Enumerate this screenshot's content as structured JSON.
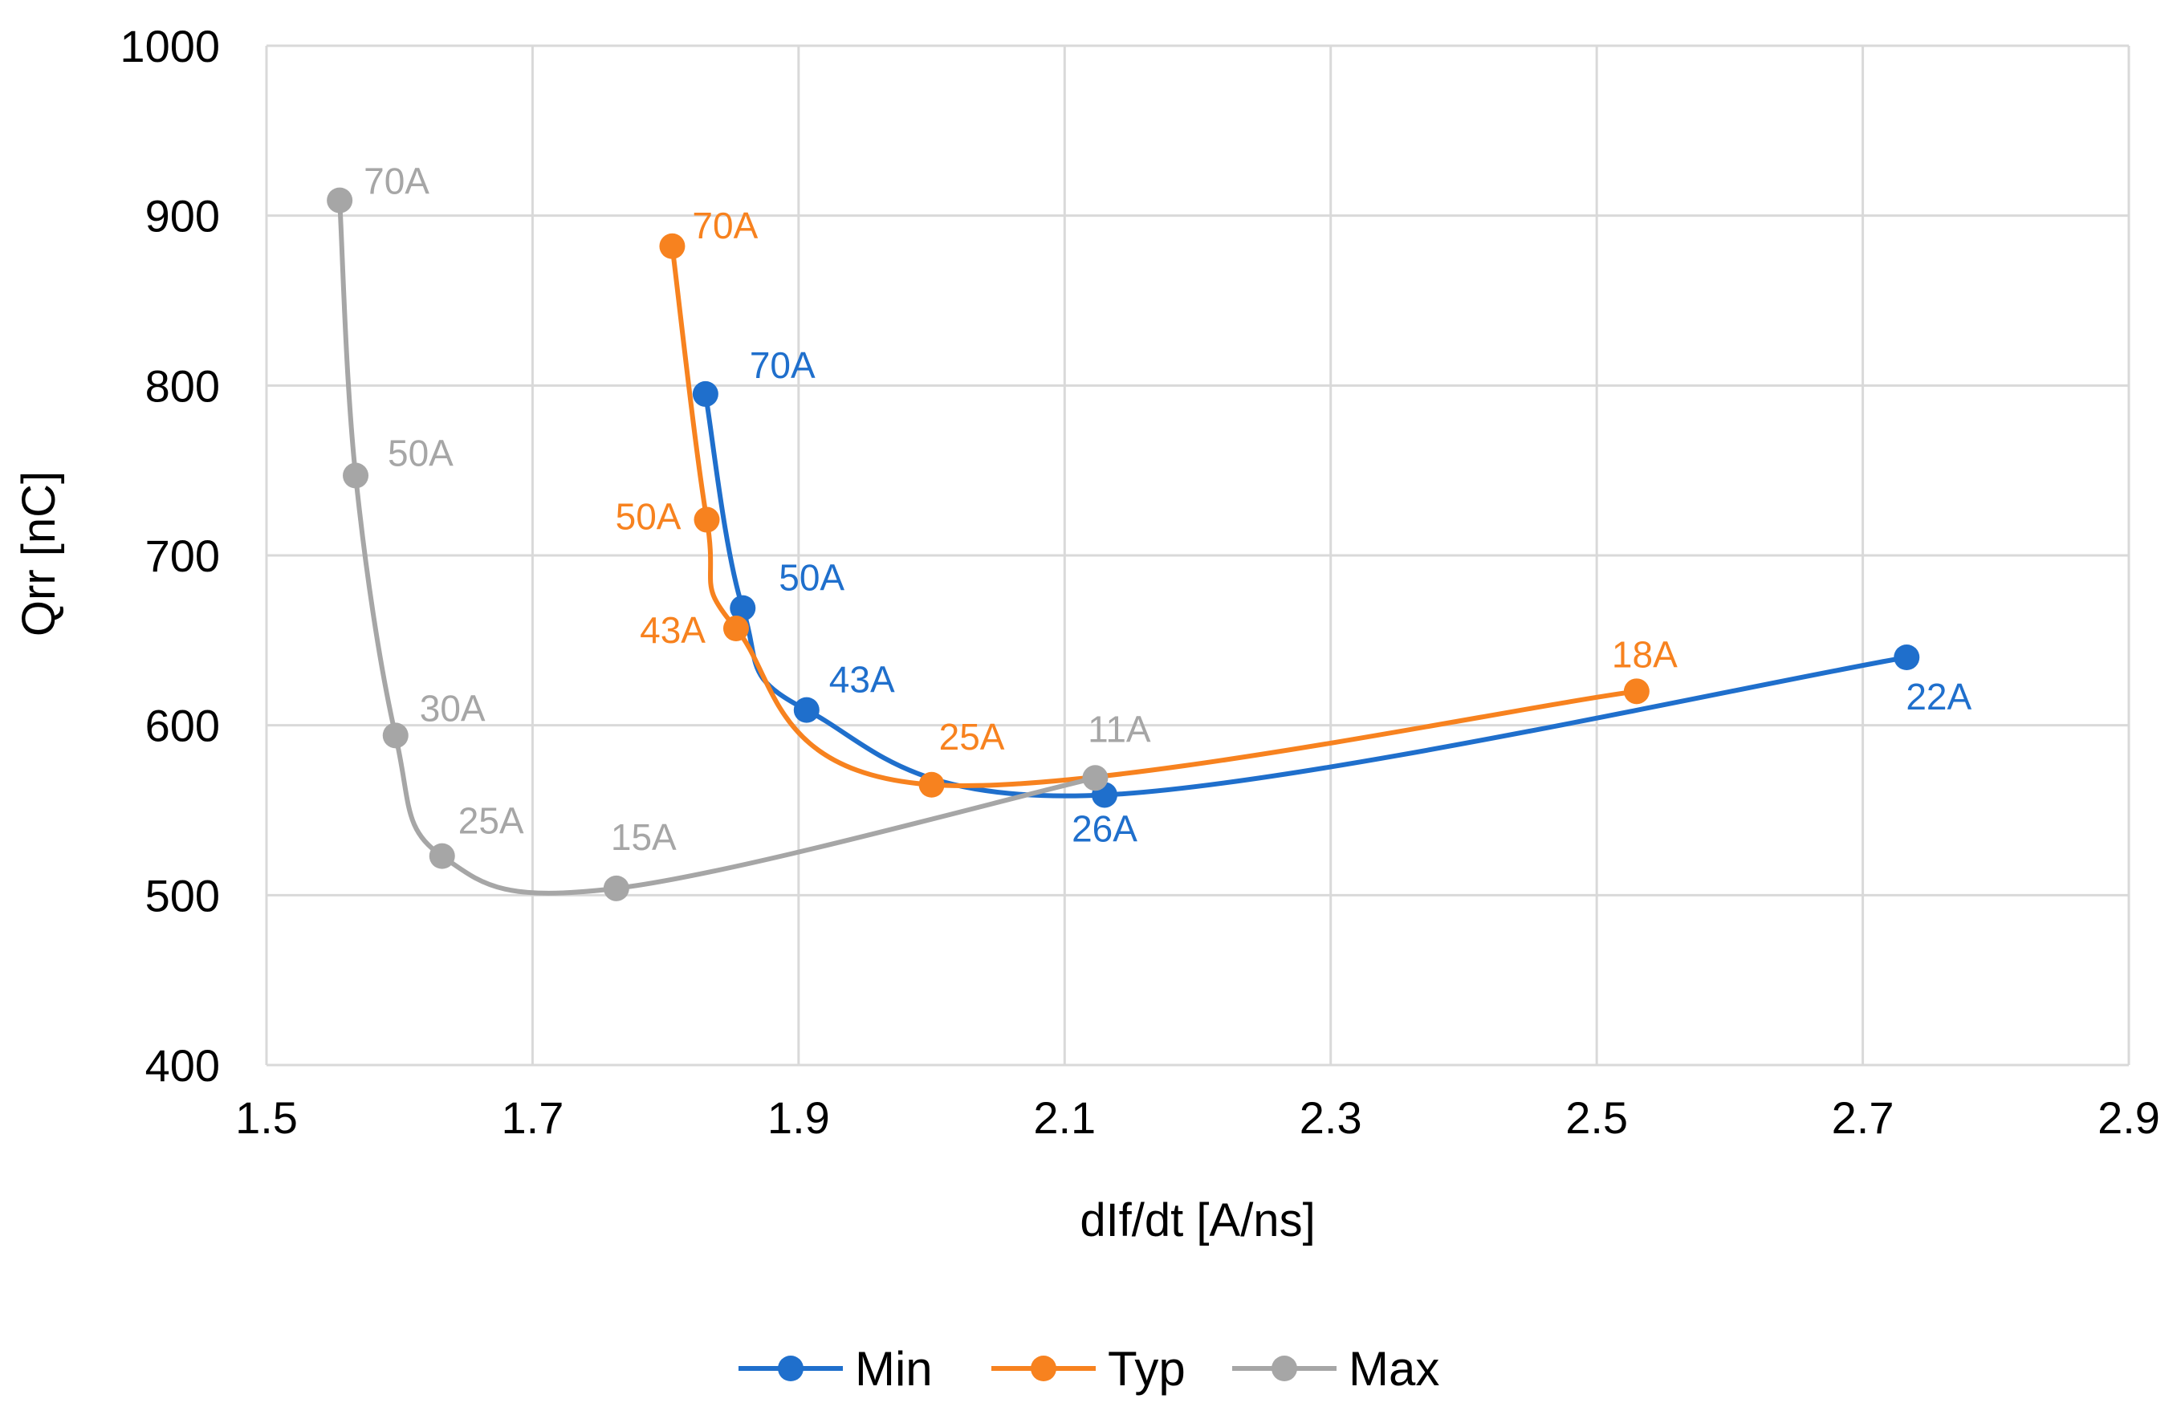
{
  "chart_data": {
    "type": "line",
    "title": "",
    "xlabel": "dIf/dt [A/ns]",
    "ylabel": "Qrr [nC]",
    "xlim": [
      1.5,
      2.9
    ],
    "ylim": [
      400,
      1000
    ],
    "xticks": [
      "1.5",
      "1.7",
      "1.9",
      "2.1",
      "2.3",
      "2.5",
      "2.7",
      "2.9"
    ],
    "yticks": [
      "400",
      "500",
      "600",
      "700",
      "800",
      "900",
      "1000"
    ],
    "grid": true,
    "smooth": true,
    "legend_position": "bottom",
    "series": [
      {
        "name": "Min",
        "color": "#1f6fcc",
        "points": [
          {
            "x": 1.83,
            "y": 795,
            "label": "70A"
          },
          {
            "x": 1.858,
            "y": 669,
            "label": "50A"
          },
          {
            "x": 1.906,
            "y": 609,
            "label": "43A"
          },
          {
            "x": 2.13,
            "y": 559,
            "label": "26A"
          },
          {
            "x": 2.733,
            "y": 640,
            "label": "22A"
          }
        ]
      },
      {
        "name": "Typ",
        "color": "#f7821f",
        "points": [
          {
            "x": 1.805,
            "y": 882,
            "label": "70A"
          },
          {
            "x": 1.831,
            "y": 721,
            "label": "50A"
          },
          {
            "x": 1.853,
            "y": 657,
            "label": "43A"
          },
          {
            "x": 2.0,
            "y": 565,
            "label": "25A"
          },
          {
            "x": 2.53,
            "y": 620,
            "label": "18A"
          }
        ]
      },
      {
        "name": "Max",
        "color": "#a6a6a6",
        "points": [
          {
            "x": 1.555,
            "y": 909,
            "label": "70A"
          },
          {
            "x": 1.567,
            "y": 747,
            "label": "50A"
          },
          {
            "x": 1.597,
            "y": 594,
            "label": "30A"
          },
          {
            "x": 1.632,
            "y": 523,
            "label": "25A"
          },
          {
            "x": 1.763,
            "y": 504,
            "label": "15A"
          },
          {
            "x": 2.123,
            "y": 569,
            "label": "11A"
          }
        ]
      }
    ]
  }
}
